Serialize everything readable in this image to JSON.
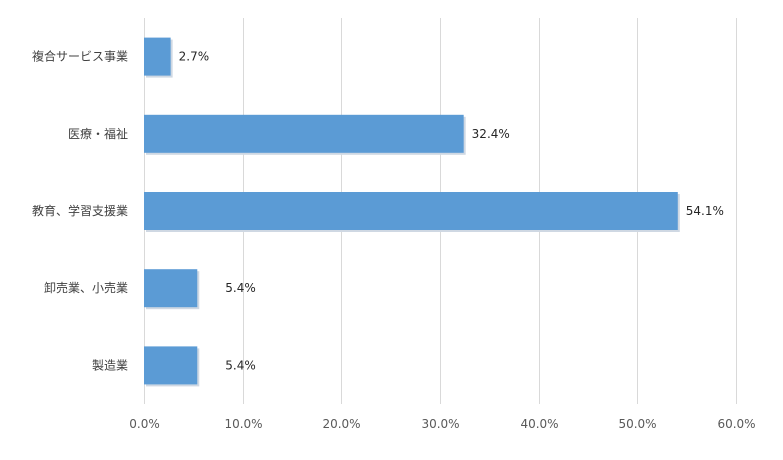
{
  "chart_data": {
    "type": "bar",
    "orientation": "horizontal",
    "categories": [
      "複合サービス事業",
      "医療・福祉",
      "教育、学習支援業",
      "卸売業、小売業",
      "製造業"
    ],
    "values": [
      2.7,
      32.4,
      54.1,
      5.4,
      5.4
    ],
    "value_labels": [
      "2.7%",
      "32.4%",
      "54.1%",
      "5.4%",
      "5.4%"
    ],
    "xlim": [
      0,
      60
    ],
    "xticks": [
      0,
      10,
      20,
      30,
      40,
      50,
      60
    ],
    "xtick_labels": [
      "0.0%",
      "10.0%",
      "20.0%",
      "30.0%",
      "40.0%",
      "50.0%",
      "60.0%"
    ],
    "grid": "vertical",
    "bar_color": "#5b9bd5",
    "title": "",
    "xlabel": "",
    "ylabel": ""
  }
}
